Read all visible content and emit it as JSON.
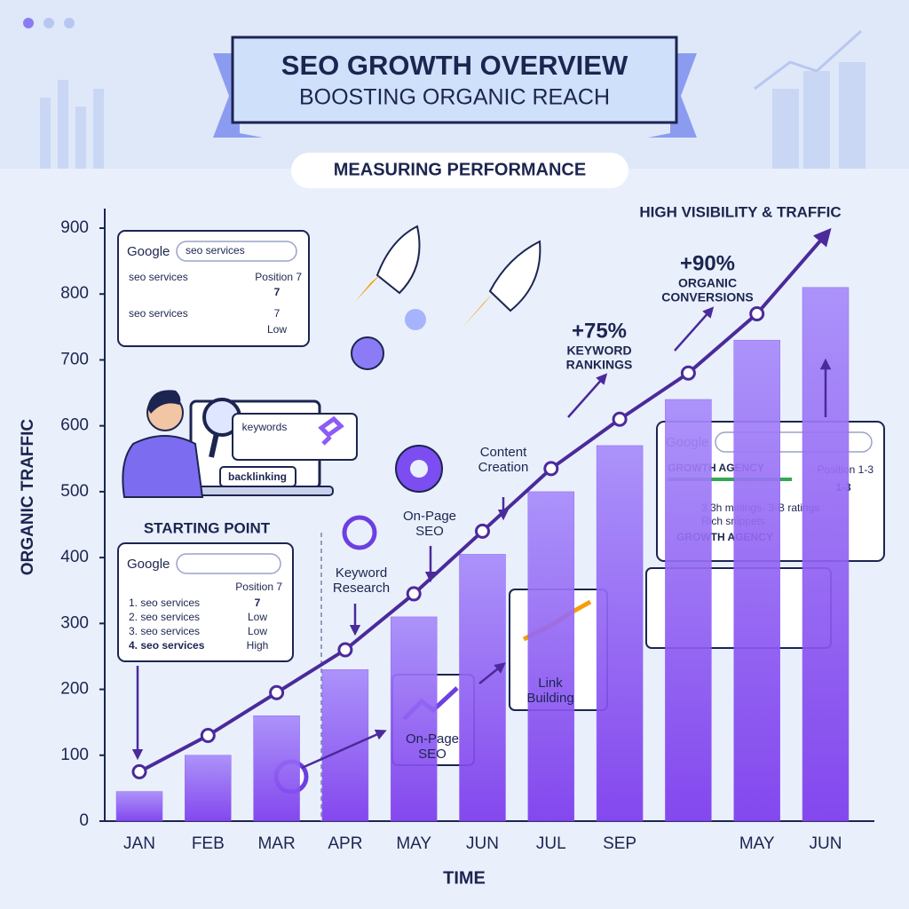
{
  "header": {
    "title": "SEO GROWTH OVERVIEW",
    "subtitle": "BOOSTING ORGANIC REACH"
  },
  "chart_data": {
    "type": "bar",
    "x_label": "TIME",
    "y_label": "ORGANIC TRAFFIC",
    "categories": [
      "JAN",
      "FEB",
      "MAR",
      "APR",
      "MAY",
      "JUN",
      "JUL",
      "SEP",
      null,
      "MAY",
      "JUN"
    ],
    "series": [
      {
        "type": "bar",
        "color": "#8b5cf6",
        "values": [
          45,
          100,
          160,
          230,
          310,
          405,
          500,
          570,
          640,
          730,
          810
        ]
      },
      {
        "type": "line",
        "color": "#4b2a9b",
        "values": [
          75,
          130,
          195,
          260,
          345,
          440,
          535,
          610,
          680,
          770,
          890
        ]
      }
    ],
    "ylim": [
      0,
      900
    ],
    "yticks": [
      0,
      100,
      200,
      300,
      400,
      500,
      600,
      700,
      800,
      900
    ],
    "annotations": [
      [
        "MEASURING PERFORMANCE"
      ],
      [
        "HIGH VISIBILITY & TRAFFIC"
      ],
      [
        "+90%"
      ],
      [
        "ORGANIC",
        "CONVERSIONS"
      ],
      [
        "+75%"
      ],
      [
        "KEYWORD",
        "RANKINGS"
      ],
      [
        "STARTING POINT"
      ],
      [
        "Keyword",
        "Research"
      ],
      [
        "On-Page",
        "SEO"
      ],
      [
        "Content",
        "Creation"
      ],
      [
        "Link",
        "Building"
      ],
      [
        "On-Page",
        "SEO"
      ],
      [
        "keywords"
      ],
      [
        "backlinking"
      ]
    ]
  },
  "cards": [
    {
      "logo": "Google",
      "search": "seo services",
      "lines": [
        "seo services",
        "Position 7",
        "7",
        "seo services",
        "7",
        "Low"
      ]
    },
    {
      "logo": "Google",
      "lines": [
        "Position 7",
        "1. seo services",
        "7",
        "2. seo services",
        "Low",
        "3. seo services",
        "Low",
        "4. seo services",
        "High"
      ]
    },
    {
      "logo": "Google",
      "lines": [
        "GROWTH AGENCY",
        "Position 1-3",
        "1-3",
        "3.3h minings· 3-B ratings",
        "Rich snippets",
        "GROWTH AGENCY"
      ]
    }
  ]
}
